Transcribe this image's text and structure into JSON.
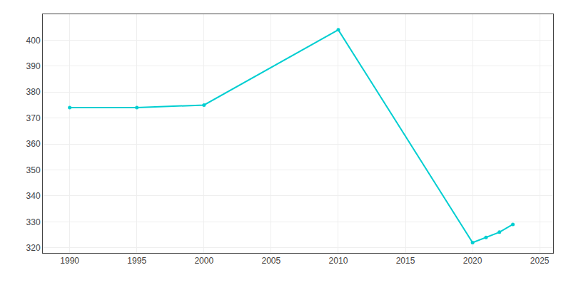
{
  "chart_data": {
    "type": "line",
    "x": [
      1990,
      1995,
      2000,
      2010,
      2020,
      2021,
      2022,
      2023
    ],
    "values": [
      374,
      374,
      375,
      404,
      322,
      324,
      326,
      329
    ],
    "color": "#00CED1",
    "marker": "circle",
    "xlim": [
      1988,
      2026
    ],
    "xticks": [
      1990,
      1995,
      2000,
      2005,
      2010,
      2015,
      2020,
      2025
    ],
    "ylim": [
      318,
      410
    ],
    "yticks": [
      320,
      330,
      340,
      350,
      360,
      370,
      380,
      390,
      400
    ],
    "grid": true
  }
}
